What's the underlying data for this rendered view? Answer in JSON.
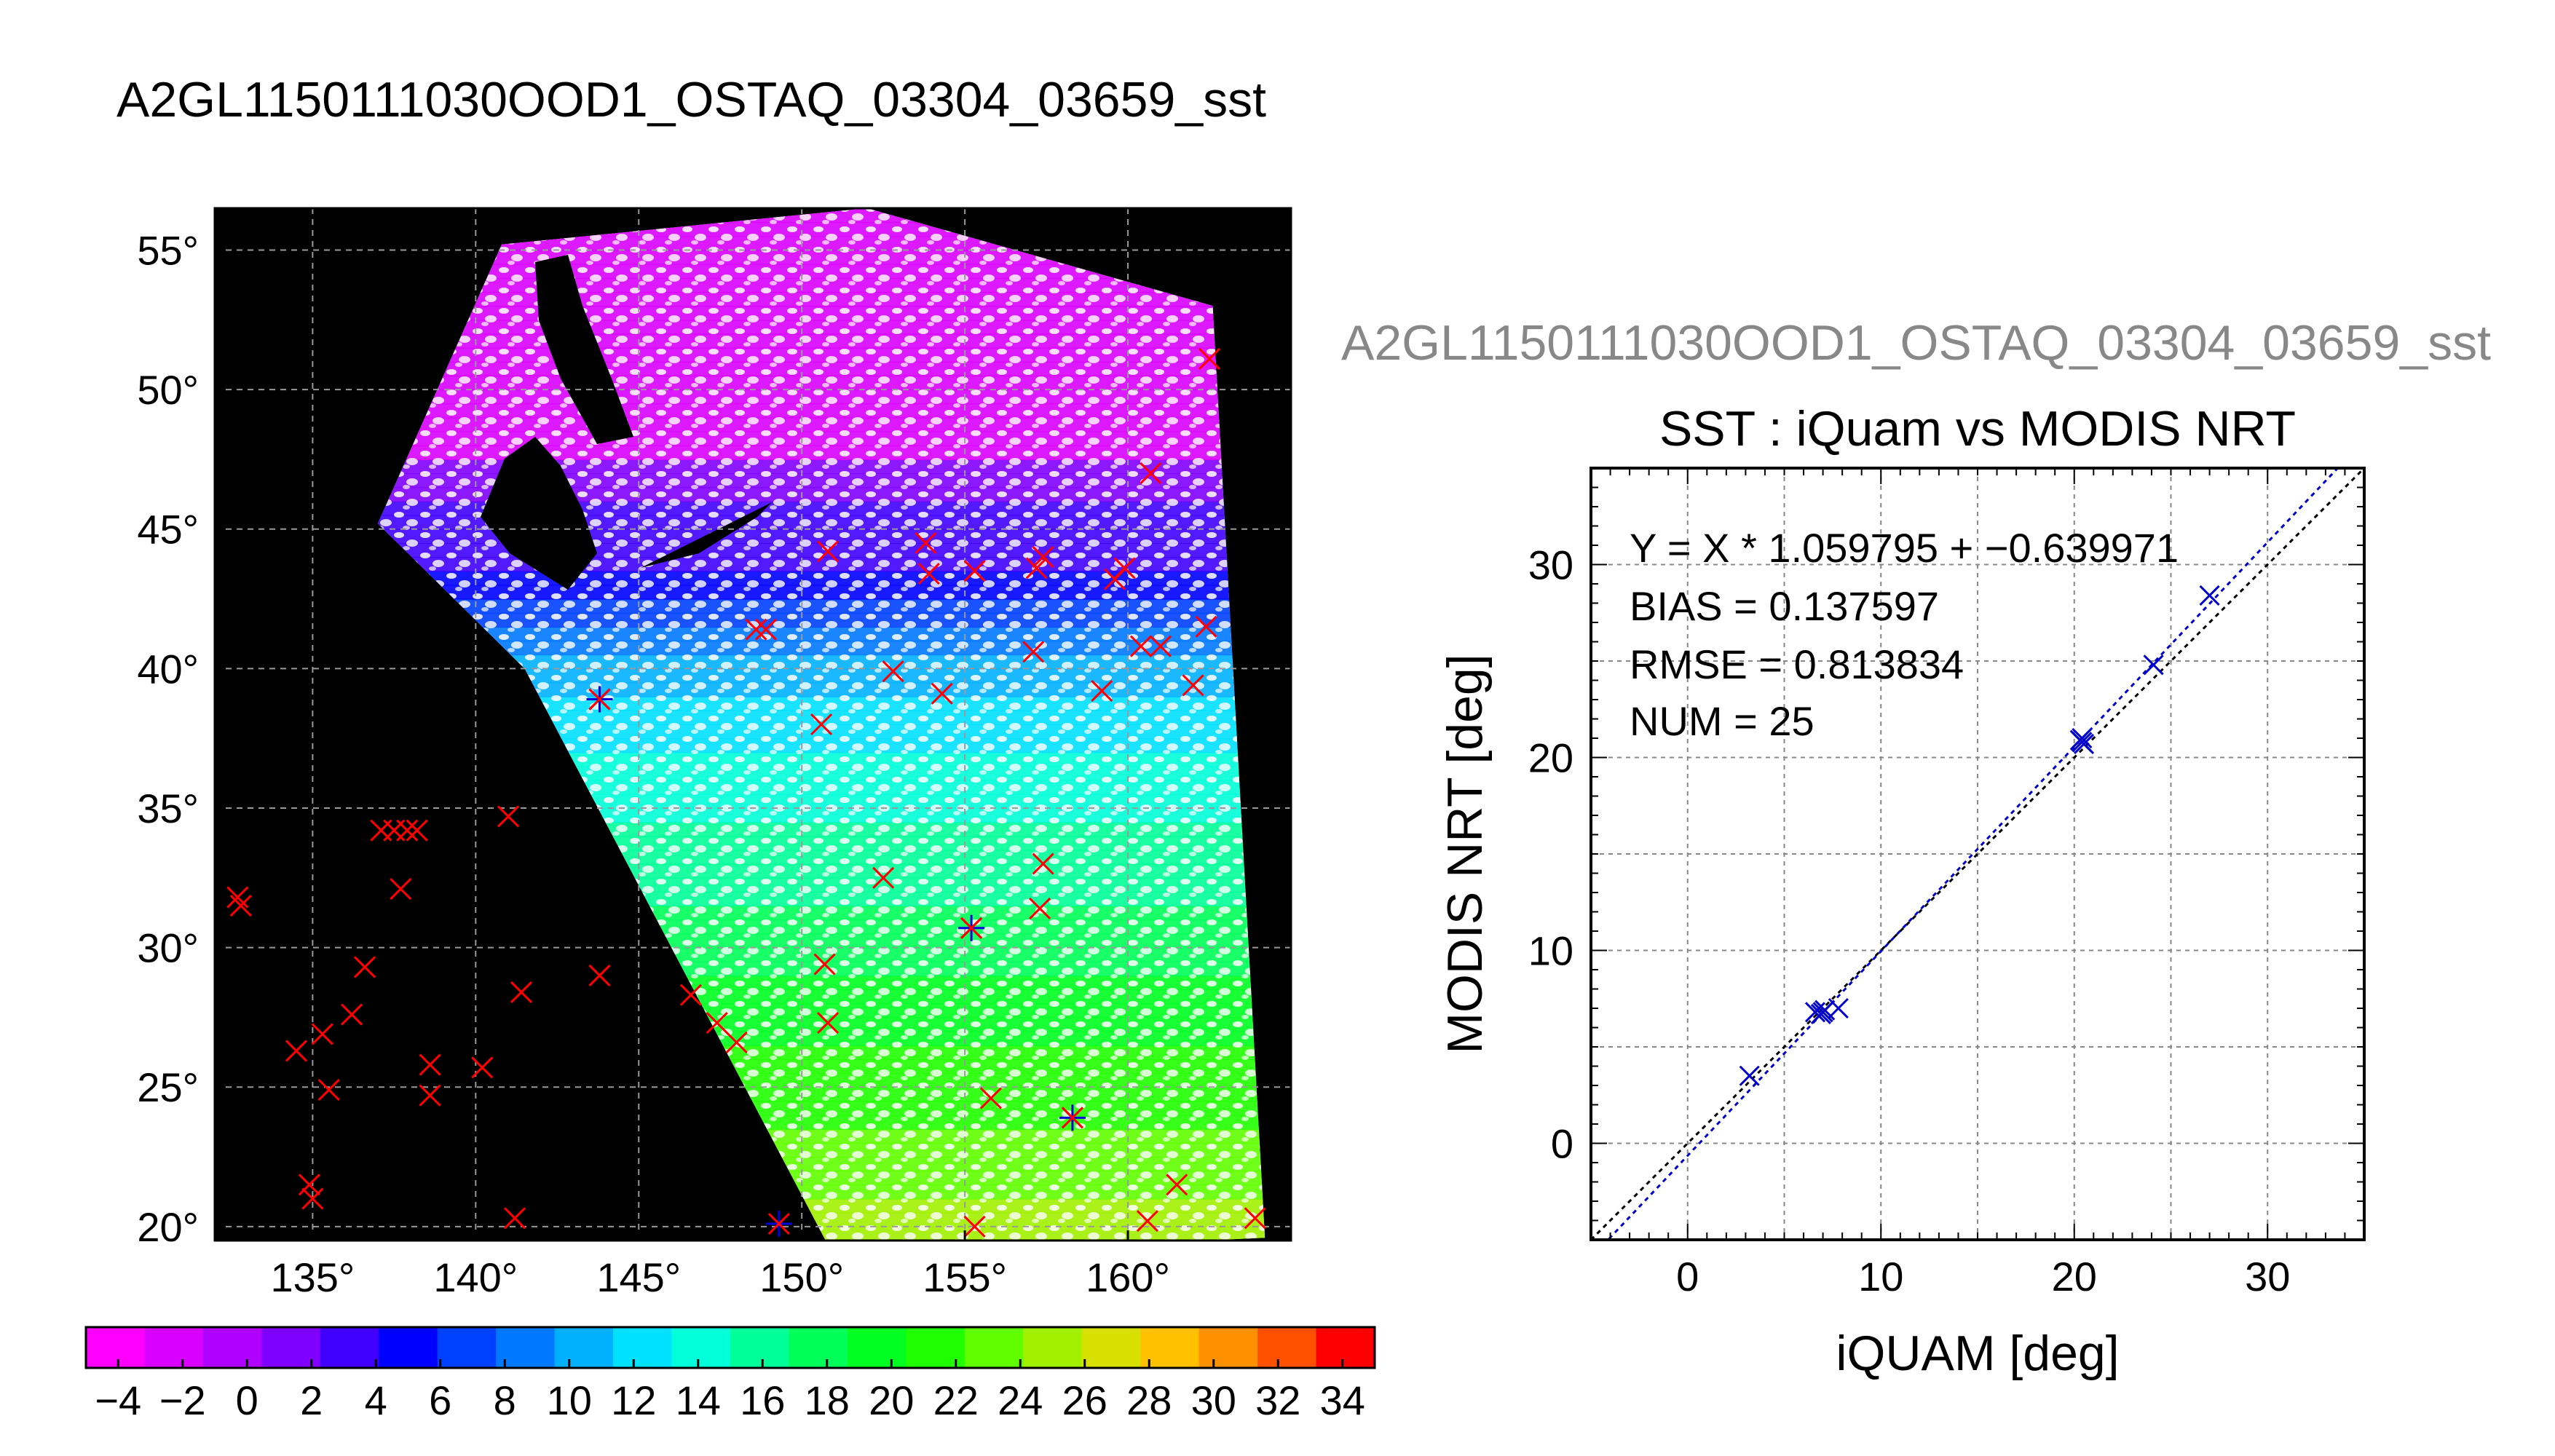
{
  "main_title": "A2GL1150111030OOD1_OSTAQ_03304_03659_sst",
  "chart_data": [
    {
      "type": "map",
      "lon_range": [
        132,
        165
      ],
      "lat_range": [
        19.5,
        56.5
      ],
      "lon_ticks": [
        135,
        140,
        145,
        150,
        155,
        160
      ],
      "lon_tick_labels": [
        "135°",
        "140°",
        "145°",
        "150°",
        "155°",
        "160°"
      ],
      "lat_ticks": [
        20,
        25,
        30,
        35,
        40,
        45,
        50,
        55
      ],
      "lat_tick_labels": [
        "20°",
        "25°",
        "30°",
        "35°",
        "40°",
        "45°",
        "50°",
        "55°"
      ],
      "grid": true,
      "swath_corners_lonlat": [
        [
          140.8,
          55.2
        ],
        [
          152.0,
          56.5
        ],
        [
          162.6,
          53.0
        ],
        [
          164.2,
          19.6
        ],
        [
          151.0,
          18.9
        ],
        [
          141.5,
          40.0
        ],
        [
          137.0,
          45.2
        ]
      ],
      "marker_color": "#ff0000",
      "matched_marker_color": "#0000dd",
      "buoy_points": [
        [
          132.7,
          31.8
        ],
        [
          132.8,
          31.5
        ],
        [
          134.5,
          26.3
        ],
        [
          135.3,
          26.9
        ],
        [
          135.5,
          24.9
        ],
        [
          136.2,
          27.6
        ],
        [
          136.6,
          29.3
        ],
        [
          134.9,
          21.5
        ],
        [
          135.0,
          21.0
        ],
        [
          137.1,
          34.2
        ],
        [
          137.5,
          34.2
        ],
        [
          137.9,
          34.2
        ],
        [
          138.2,
          34.2
        ],
        [
          137.7,
          32.1
        ],
        [
          138.6,
          25.8
        ],
        [
          138.6,
          24.7
        ],
        [
          140.2,
          25.7
        ],
        [
          141.0,
          34.7
        ],
        [
          141.4,
          28.4
        ],
        [
          141.2,
          20.3
        ],
        [
          143.8,
          38.9
        ],
        [
          143.8,
          29.0
        ],
        [
          146.6,
          28.3
        ],
        [
          147.4,
          27.3
        ],
        [
          148.0,
          26.6
        ],
        [
          148.6,
          41.4
        ],
        [
          148.9,
          41.4
        ],
        [
          150.8,
          44.2
        ],
        [
          150.6,
          38.0
        ],
        [
          150.7,
          29.4
        ],
        [
          150.8,
          27.3
        ],
        [
          152.5,
          32.5
        ],
        [
          152.8,
          39.9
        ],
        [
          153.8,
          44.5
        ],
        [
          153.9,
          43.4
        ],
        [
          154.3,
          39.1
        ],
        [
          155.2,
          30.7
        ],
        [
          155.3,
          43.5
        ],
        [
          155.3,
          20.0
        ],
        [
          155.8,
          24.6
        ],
        [
          157.1,
          40.6
        ],
        [
          157.2,
          43.6
        ],
        [
          157.4,
          44.0
        ],
        [
          157.3,
          31.4
        ],
        [
          157.4,
          33.0
        ],
        [
          158.3,
          23.9
        ],
        [
          159.2,
          39.2
        ],
        [
          159.6,
          43.2
        ],
        [
          159.9,
          43.6
        ],
        [
          160.4,
          40.8
        ],
        [
          160.7,
          47.0
        ],
        [
          161.0,
          40.8
        ],
        [
          160.6,
          20.2
        ],
        [
          161.5,
          21.5
        ],
        [
          162.0,
          39.4
        ],
        [
          162.4,
          41.5
        ],
        [
          162.5,
          51.1
        ],
        [
          163.9,
          20.3
        ]
      ],
      "matched_points": [
        [
          143.8,
          38.9
        ],
        [
          149.3,
          20.1
        ],
        [
          155.2,
          30.7
        ],
        [
          158.3,
          23.9
        ]
      ]
    },
    {
      "type": "colorbar",
      "min": -5,
      "max": 35,
      "step": 2,
      "tick_labels": [
        "−4",
        "−2",
        "0",
        "2",
        "4",
        "6",
        "8",
        "10",
        "12",
        "14",
        "16",
        "18",
        "20",
        "22",
        "24",
        "26",
        "28",
        "30",
        "32",
        "34"
      ],
      "colors": [
        "#ff00ff",
        "#d800ff",
        "#b000ff",
        "#8000ff",
        "#4000ff",
        "#0000ff",
        "#0040ff",
        "#0078ff",
        "#00b0ff",
        "#00e0ff",
        "#00ffd8",
        "#00ff98",
        "#00ff58",
        "#00ff20",
        "#20ff00",
        "#60ff00",
        "#a0f000",
        "#d8e000",
        "#ffc000",
        "#ff9000",
        "#ff5000",
        "#ff0000"
      ]
    },
    {
      "type": "scatter",
      "supertitle": "A2GL1150111030OOD1_OSTAQ_03304_03659_sst",
      "title": "SST : iQuam vs MODIS NRT",
      "xlabel": "iQUAM [deg]",
      "ylabel": "MODIS NRT [deg]",
      "xlim": [
        -5,
        35
      ],
      "ylim": [
        -5,
        35
      ],
      "x_ticks": [
        0,
        10,
        20,
        30
      ],
      "x_tick_labels": [
        "0",
        "10",
        "20",
        "30"
      ],
      "y_ticks": [
        0,
        10,
        20,
        30
      ],
      "y_tick_labels": [
        "0",
        "10",
        "20",
        "30"
      ],
      "grid": true,
      "stats": [
        "Y = X * 1.059795 + −0.639971",
        "BIAS = 0.137597",
        "RMSE = 0.813834",
        "NUM = 25"
      ],
      "fit": {
        "slope": 1.059795,
        "intercept": -0.639971,
        "color": "#0000cc"
      },
      "identity_line_color": "#000000",
      "point_color": "#0000cc",
      "points": [
        [
          3.2,
          3.5
        ],
        [
          6.6,
          6.8
        ],
        [
          6.9,
          6.7
        ],
        [
          7.0,
          6.8
        ],
        [
          7.1,
          6.9
        ],
        [
          7.8,
          7.0
        ],
        [
          20.3,
          20.9
        ],
        [
          20.4,
          20.8
        ],
        [
          20.5,
          20.7
        ],
        [
          20.4,
          21.0
        ],
        [
          24.1,
          24.8
        ],
        [
          27.0,
          28.4
        ]
      ]
    }
  ]
}
